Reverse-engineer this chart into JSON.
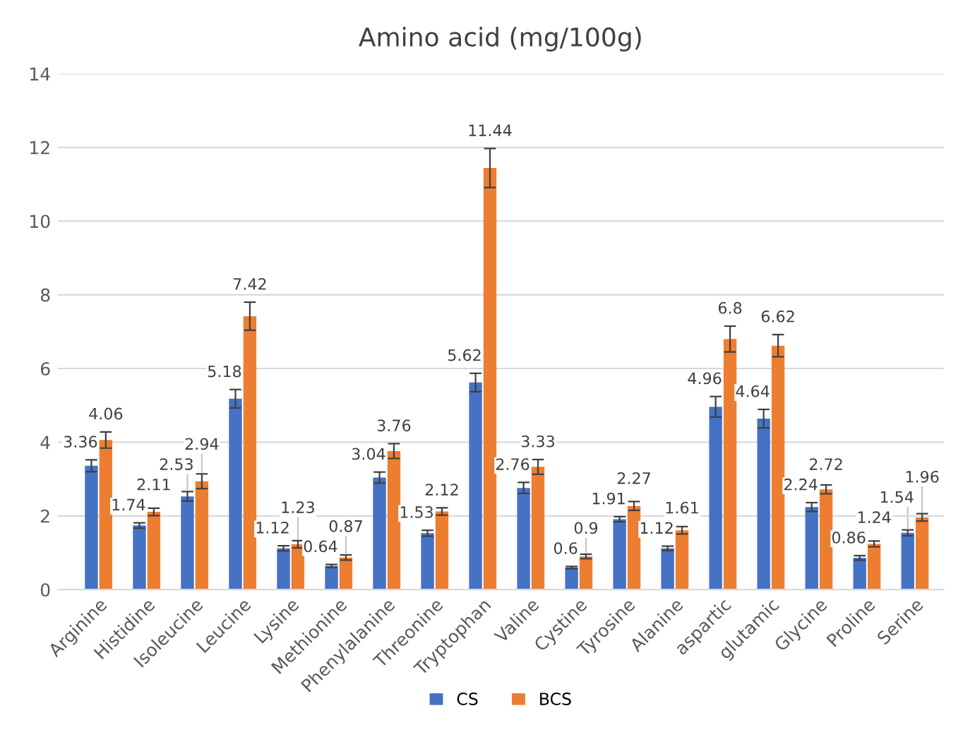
{
  "chart_data": {
    "type": "bar",
    "title": "Amino acid (mg/100g)",
    "categories": [
      "Arginine",
      "Histidine",
      "Isoleucine",
      "Leucine",
      "Lysine",
      "Methionine",
      "Phenylalanine",
      "Threonine",
      "Tryptophan",
      "Valine",
      "Cystine",
      "Tyrosine",
      "Alanine",
      "aspartic",
      "glutamic",
      "Glycine",
      "Proline",
      "Serine"
    ],
    "series": [
      {
        "name": "CS",
        "color": "#4472c4",
        "values": [
          3.36,
          1.74,
          2.53,
          5.18,
          1.12,
          0.64,
          3.04,
          1.53,
          5.62,
          2.76,
          0.6,
          1.91,
          1.12,
          4.96,
          4.64,
          2.24,
          0.86,
          1.54
        ],
        "errors": [
          0.16,
          0.07,
          0.13,
          0.25,
          0.07,
          0.04,
          0.15,
          0.08,
          0.25,
          0.15,
          0.03,
          0.07,
          0.06,
          0.28,
          0.25,
          0.12,
          0.06,
          0.08
        ]
      },
      {
        "name": "BCS",
        "color": "#ed7d31",
        "values": [
          4.06,
          2.11,
          2.94,
          7.42,
          1.23,
          0.87,
          3.76,
          2.12,
          11.44,
          3.33,
          0.9,
          2.27,
          1.61,
          6.8,
          6.62,
          2.72,
          1.24,
          1.96
        ],
        "errors": [
          0.22,
          0.1,
          0.2,
          0.38,
          0.1,
          0.07,
          0.2,
          0.1,
          0.53,
          0.2,
          0.06,
          0.12,
          0.1,
          0.35,
          0.3,
          0.12,
          0.08,
          0.1
        ]
      }
    ],
    "ylim": [
      0,
      14
    ],
    "yticks": [
      0,
      2,
      4,
      6,
      8,
      10,
      12,
      14
    ],
    "grid": "y",
    "legend": "bottom",
    "data_labels": true
  }
}
